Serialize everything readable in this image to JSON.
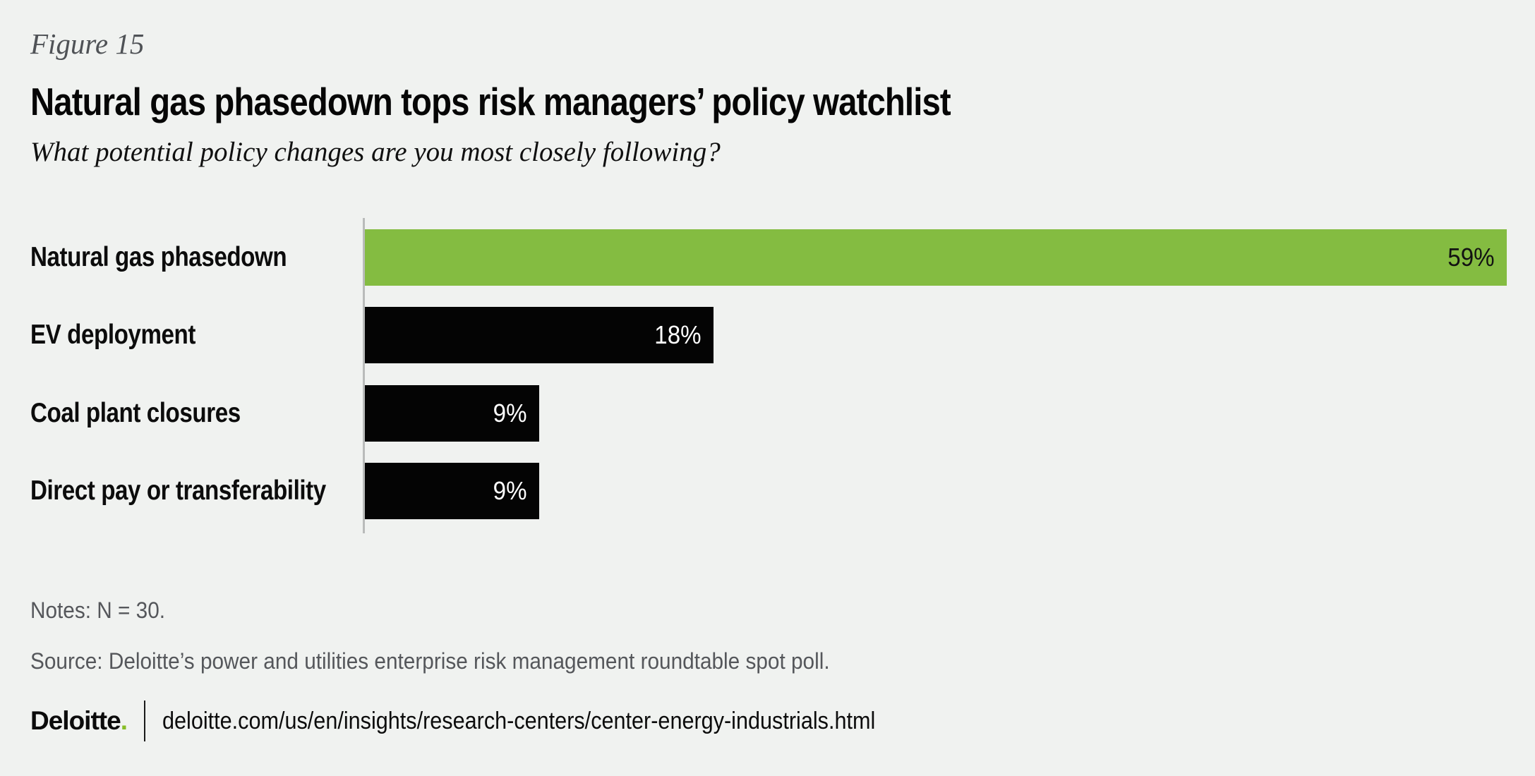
{
  "figure": {
    "label": "Figure 15",
    "title": "Natural gas phasedown tops risk managers’ policy watchlist",
    "subtitle": "What potential policy changes are you most closely following?"
  },
  "chart_data": {
    "type": "bar",
    "orientation": "horizontal",
    "title": "Natural gas phasedown tops risk managers’ policy watchlist",
    "subtitle": "What potential policy changes are you most closely following?",
    "categories": [
      "Natural gas phasedown",
      "EV deployment",
      "Coal plant closures",
      "Direct pay or transferability"
    ],
    "values": [
      59,
      18,
      9,
      9
    ],
    "value_labels": [
      "59%",
      "18%",
      "9%",
      "9%"
    ],
    "unit": "percent",
    "xlim": [
      0,
      60
    ],
    "gridlines": false,
    "legend": false,
    "bar_colors": [
      "#84bc41",
      "#040404",
      "#040404",
      "#040404"
    ],
    "value_label_colors": [
      "#121212",
      "#ffffff",
      "#ffffff",
      "#ffffff"
    ],
    "highlight_color": "#84bc41",
    "default_bar_color": "#040404",
    "axis_line_color": "#b9bbba"
  },
  "notes": "Notes: N = 30.",
  "source": "Source: Deloitte’s power and utilities enterprise risk management roundtable spot poll.",
  "footer": {
    "brand": "Deloitte",
    "brand_dot": ".",
    "url": "deloitte.com/us/en/insights/research-centers/center-energy-industrials.html"
  },
  "colors": {
    "background": "#f0f2f0",
    "accent_green": "#84bc41",
    "brand_green": "#86bc25",
    "bar_black": "#040404",
    "muted_text": "#55575b",
    "figure_label_text": "#4f5256"
  }
}
